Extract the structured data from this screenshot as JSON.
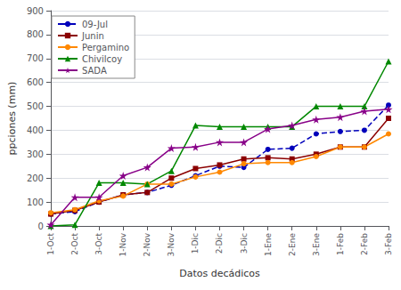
{
  "chart_data": {
    "type": "line",
    "xlabel": "Datos decádicos",
    "ylabel": "ppciones (mm)",
    "categories": [
      "1-Oct",
      "2-Oct",
      "3-Oct",
      "1-Nov",
      "2-Nov",
      "3-Nov",
      "1-Dic",
      "2-Dic",
      "3-Dic",
      "1-Ene",
      "2-Ene",
      "3-Ene",
      "1-Feb",
      "2-Feb",
      "3-Feb"
    ],
    "series": [
      {
        "name": "09-Jul",
        "color": "#0000BB",
        "marker": "circle",
        "line_style": "dashed",
        "values": [
          50,
          60,
          100,
          130,
          140,
          170,
          210,
          250,
          245,
          320,
          325,
          385,
          395,
          400,
          505
        ]
      },
      {
        "name": "Junin",
        "color": "#8B0000",
        "marker": "square",
        "line_style": "solid",
        "values": [
          50,
          65,
          100,
          130,
          140,
          200,
          240,
          255,
          280,
          285,
          280,
          300,
          330,
          330,
          450
        ]
      },
      {
        "name": "Pergamino",
        "color": "#FF8800",
        "marker": "circle",
        "line_style": "solid",
        "values": [
          55,
          68,
          105,
          125,
          175,
          175,
          205,
          225,
          260,
          265,
          265,
          290,
          330,
          330,
          385
        ]
      },
      {
        "name": "Chivilcoy",
        "color": "#008800",
        "marker": "triangle",
        "line_style": "solid",
        "values": [
          0,
          5,
          180,
          180,
          175,
          230,
          420,
          415,
          415,
          415,
          415,
          500,
          500,
          500,
          688
        ]
      },
      {
        "name": "SADA",
        "color": "#880088",
        "marker": "star",
        "line_style": "solid",
        "values": [
          5,
          120,
          120,
          210,
          245,
          325,
          330,
          350,
          350,
          405,
          420,
          445,
          455,
          480,
          488
        ]
      }
    ],
    "ylim": [
      0,
      900
    ],
    "yticks": [
      0,
      100,
      200,
      300,
      400,
      500,
      600,
      700,
      800,
      900
    ],
    "grid": true,
    "legend": "upper left"
  }
}
